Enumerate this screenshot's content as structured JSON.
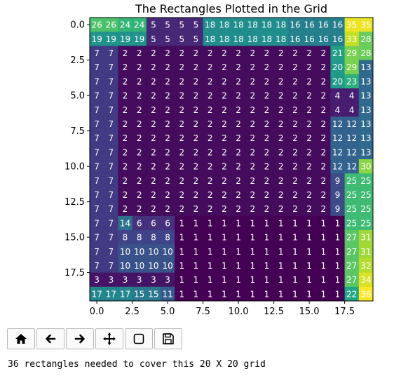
{
  "status_text": "36 rectangles needed to cover this 20 X 20 grid",
  "toolbar": [
    {
      "name": "home-icon",
      "label": "Home"
    },
    {
      "name": "back-arrow-icon",
      "label": "Back"
    },
    {
      "name": "forward-arrow-icon",
      "label": "Forward"
    },
    {
      "name": "pan-icon",
      "label": "Pan"
    },
    {
      "name": "zoom-rect-icon",
      "label": "Zoom"
    },
    {
      "name": "save-icon",
      "label": "Save"
    }
  ],
  "chart_data": {
    "type": "heatmap",
    "title": "The Rectangles Plotted in the Grid",
    "xlabel": "",
    "ylabel": "",
    "colormap": "viridis",
    "value_range": [
      1,
      36
    ],
    "x_ticks": [
      "0.0",
      "2.5",
      "5.0",
      "7.5",
      "10.0",
      "12.5",
      "15.0",
      "17.5"
    ],
    "y_ticks": [
      "0.0",
      "2.5",
      "5.0",
      "7.5",
      "10.0",
      "12.5",
      "15.0",
      "17.5"
    ],
    "x_tick_values": [
      0,
      2.5,
      5,
      7.5,
      10,
      12.5,
      15,
      17.5
    ],
    "y_tick_values": [
      0,
      2.5,
      5,
      7.5,
      10,
      12.5,
      15,
      17.5
    ],
    "grid": [
      [
        26,
        26,
        24,
        24,
        5,
        5,
        5,
        5,
        18,
        18,
        18,
        18,
        18,
        18,
        16,
        16,
        16,
        16,
        35,
        35
      ],
      [
        19,
        19,
        19,
        19,
        5,
        5,
        5,
        5,
        18,
        18,
        18,
        18,
        18,
        18,
        16,
        16,
        16,
        16,
        33,
        28
      ],
      [
        7,
        7,
        2,
        2,
        2,
        2,
        2,
        2,
        2,
        2,
        2,
        2,
        2,
        2,
        2,
        2,
        2,
        21,
        29,
        28
      ],
      [
        7,
        7,
        2,
        2,
        2,
        2,
        2,
        2,
        2,
        2,
        2,
        2,
        2,
        2,
        2,
        2,
        2,
        20,
        29,
        13
      ],
      [
        7,
        7,
        2,
        2,
        2,
        2,
        2,
        2,
        2,
        2,
        2,
        2,
        2,
        2,
        2,
        2,
        2,
        20,
        23,
        13
      ],
      [
        7,
        7,
        2,
        2,
        2,
        2,
        2,
        2,
        2,
        2,
        2,
        2,
        2,
        2,
        2,
        2,
        2,
        4,
        4,
        13
      ],
      [
        7,
        7,
        2,
        2,
        2,
        2,
        2,
        2,
        2,
        2,
        2,
        2,
        2,
        2,
        2,
        2,
        2,
        4,
        4,
        13
      ],
      [
        7,
        7,
        2,
        2,
        2,
        2,
        2,
        2,
        2,
        2,
        2,
        2,
        2,
        2,
        2,
        2,
        2,
        12,
        12,
        13
      ],
      [
        7,
        7,
        2,
        2,
        2,
        2,
        2,
        2,
        2,
        2,
        2,
        2,
        2,
        2,
        2,
        2,
        2,
        12,
        12,
        13
      ],
      [
        7,
        7,
        2,
        2,
        2,
        2,
        2,
        2,
        2,
        2,
        2,
        2,
        2,
        2,
        2,
        2,
        2,
        12,
        12,
        13
      ],
      [
        7,
        7,
        2,
        2,
        2,
        2,
        2,
        2,
        2,
        2,
        2,
        2,
        2,
        2,
        2,
        2,
        2,
        12,
        12,
        30
      ],
      [
        7,
        7,
        2,
        2,
        2,
        2,
        2,
        2,
        2,
        2,
        2,
        2,
        2,
        2,
        2,
        2,
        2,
        9,
        25,
        25
      ],
      [
        7,
        7,
        2,
        2,
        2,
        2,
        2,
        2,
        2,
        2,
        2,
        2,
        2,
        2,
        2,
        2,
        2,
        9,
        25,
        25
      ],
      [
        7,
        7,
        2,
        2,
        2,
        2,
        2,
        2,
        2,
        2,
        2,
        2,
        2,
        2,
        2,
        2,
        2,
        9,
        25,
        25
      ],
      [
        7,
        7,
        14,
        6,
        6,
        6,
        1,
        1,
        1,
        1,
        1,
        1,
        1,
        1,
        1,
        1,
        1,
        1,
        25,
        25
      ],
      [
        7,
        7,
        8,
        8,
        8,
        8,
        1,
        1,
        1,
        1,
        1,
        1,
        1,
        1,
        1,
        1,
        1,
        1,
        27,
        31
      ],
      [
        7,
        7,
        10,
        10,
        10,
        10,
        1,
        1,
        1,
        1,
        1,
        1,
        1,
        1,
        1,
        1,
        1,
        1,
        27,
        31
      ],
      [
        7,
        7,
        10,
        10,
        10,
        10,
        1,
        1,
        1,
        1,
        1,
        1,
        1,
        1,
        1,
        1,
        1,
        1,
        27,
        32
      ],
      [
        3,
        3,
        3,
        3,
        3,
        3,
        1,
        1,
        1,
        1,
        1,
        1,
        1,
        1,
        1,
        1,
        1,
        1,
        27,
        34
      ],
      [
        17,
        17,
        17,
        15,
        15,
        11,
        1,
        1,
        1,
        1,
        1,
        1,
        1,
        1,
        1,
        1,
        1,
        1,
        22,
        36
      ]
    ]
  }
}
